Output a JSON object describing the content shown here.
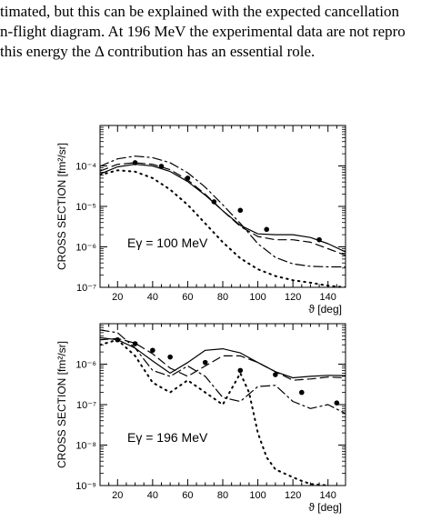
{
  "paper_text": {
    "lines": [
      "timated, but this can be explained with the expected cancellation",
      "n-flight diagram.  At 196 MeV the experimental data are not repro",
      "this energy the Δ contribution has an essential role."
    ]
  },
  "chart_data": [
    {
      "type": "line",
      "energy_label": "Eγ = 100 MeV",
      "ylabel": "CROSS SECTION [fm²/sr]",
      "xlabel": "ϑ [deg]",
      "xlim": [
        10,
        150
      ],
      "ylim": [
        1e-07,
        0.001
      ],
      "yscale": "log",
      "x_ticks": [
        20,
        40,
        60,
        80,
        100,
        120,
        140
      ],
      "x_tick_labels": [
        "20",
        "40",
        "60",
        "80",
        "100",
        "120",
        "140"
      ],
      "y_ticks": [
        1e-07,
        1e-06,
        1e-05,
        0.0001
      ],
      "y_tick_labels": [
        "10⁻⁷",
        "10⁻⁶",
        "10⁻⁵",
        "10⁻⁴"
      ],
      "series": [
        {
          "style": "solid",
          "x": [
            10,
            20,
            30,
            40,
            50,
            60,
            70,
            80,
            90,
            100,
            110,
            120,
            130,
            140,
            150
          ],
          "y": [
            6.3e-05,
            9.5e-05,
            0.00011,
            0.0001,
            7.3e-05,
            4.1e-05,
            1.9e-05,
            7.8e-06,
            3.4e-06,
            2.1e-06,
            2e-06,
            2e-06,
            1.7e-06,
            1.2e-06,
            7.5e-07
          ]
        },
        {
          "style": "dash",
          "x": [
            10,
            20,
            30,
            40,
            50,
            60,
            70,
            80,
            90,
            100,
            110,
            120,
            130,
            140,
            150
          ],
          "y": [
            7.5e-05,
            0.00011,
            0.00012,
            0.00011,
            8.1e-05,
            4.5e-05,
            2e-05,
            7.8e-06,
            3.2e-06,
            1.8e-06,
            1.5e-06,
            1.5e-06,
            1.3e-06,
            9e-07,
            6.2e-07
          ]
        },
        {
          "style": "dashdot",
          "x": [
            10,
            20,
            30,
            40,
            50,
            60,
            70,
            80,
            90,
            100,
            110,
            120,
            130,
            140,
            150
          ],
          "y": [
            9.8e-05,
            0.00015,
            0.000175,
            0.00016,
            0.00012,
            6.8e-05,
            3e-05,
            1.1e-05,
            3.8e-06,
            1.2e-06,
            5.5e-07,
            3.8e-07,
            3.3e-07,
            3.2e-07,
            3.2e-07
          ]
        },
        {
          "style": "dot",
          "x": [
            10,
            20,
            30,
            40,
            50,
            60,
            70,
            80,
            90,
            100,
            110,
            120,
            130,
            140,
            150
          ],
          "y": [
            6e-05,
            7.8e-05,
            7.2e-05,
            5e-05,
            2.6e-05,
            1.1e-05,
            3.8e-06,
            1.3e-06,
            5.2e-07,
            2.8e-07,
            1.9e-07,
            1.5e-07,
            1.3e-07,
            1.1e-07,
            1e-07
          ]
        }
      ],
      "points": {
        "x": [
          30,
          45,
          60,
          75,
          90,
          105,
          135
        ],
        "y": [
          0.00012,
          9.8e-05,
          5e-05,
          1.3e-05,
          8e-06,
          2.7e-06,
          1.5e-06
        ]
      }
    },
    {
      "type": "line",
      "energy_label": "Eγ = 196 MeV",
      "ylabel": "CROSS SECTION [fm²/sr]",
      "xlabel": "ϑ [deg]",
      "xlim": [
        10,
        150
      ],
      "ylim": [
        1e-09,
        1e-05
      ],
      "yscale": "log",
      "x_ticks": [
        20,
        40,
        60,
        80,
        100,
        120,
        140
      ],
      "x_tick_labels": [
        "20",
        "40",
        "60",
        "80",
        "100",
        "120",
        "140"
      ],
      "y_ticks": [
        1e-09,
        1e-08,
        1e-07,
        1e-06
      ],
      "y_tick_labels": [
        "10⁻⁹",
        "10⁻⁸",
        "10⁻⁷",
        "10⁻⁶"
      ],
      "series": [
        {
          "style": "solid",
          "x": [
            10,
            20,
            30,
            40,
            50,
            60,
            70,
            80,
            90,
            100,
            110,
            120,
            130,
            140,
            150
          ],
          "y": [
            4.5e-06,
            4e-06,
            2.5e-06,
            1.2e-06,
            6e-07,
            1.1e-06,
            2.2e-06,
            2.4e-06,
            1.9e-06,
            1.1e-06,
            6.5e-07,
            4.6e-07,
            5e-07,
            5.3e-07,
            5.2e-07
          ]
        },
        {
          "style": "dash",
          "x": [
            10,
            20,
            30,
            40,
            50,
            60,
            70,
            80,
            90,
            100,
            110,
            120,
            130,
            140,
            150
          ],
          "y": [
            4e-06,
            4.3e-06,
            3.3e-06,
            1.8e-06,
            8e-07,
            5e-07,
            9e-07,
            1.6e-06,
            1.6e-06,
            1.1e-06,
            6.5e-07,
            4e-07,
            4.3e-07,
            4.8e-07,
            4.6e-07
          ]
        },
        {
          "style": "dashdot",
          "x": [
            10,
            20,
            30,
            40,
            50,
            60,
            70,
            80,
            90,
            100,
            110,
            120,
            130,
            140,
            150
          ],
          "y": [
            7e-06,
            6e-06,
            2.5e-06,
            7e-07,
            5e-07,
            9e-07,
            5e-07,
            1.5e-07,
            1.2e-07,
            2.8e-07,
            3e-07,
            1.2e-07,
            8e-08,
            1e-07,
            6e-08
          ]
        },
        {
          "style": "dot",
          "x": [
            10,
            20,
            30,
            40,
            50,
            60,
            70,
            80,
            90,
            95,
            100,
            105,
            110,
            115,
            120,
            125,
            130,
            140
          ],
          "y": [
            3e-06,
            4e-06,
            1.6e-06,
            3.5e-07,
            2e-07,
            4e-07,
            2e-07,
            1e-07,
            6e-07,
            2e-07,
            2e-08,
            5e-09,
            2.5e-09,
            2e-09,
            1.6e-09,
            1.3e-09,
            1.1e-09,
            1e-09
          ]
        }
      ],
      "points": {
        "x": [
          20,
          30,
          40,
          50,
          70,
          90,
          110,
          125,
          145
        ],
        "y": [
          4e-06,
          3.2e-06,
          2.2e-06,
          1.5e-06,
          1.1e-06,
          7e-07,
          5.5e-07,
          2e-07,
          1.1e-07
        ]
      }
    }
  ]
}
